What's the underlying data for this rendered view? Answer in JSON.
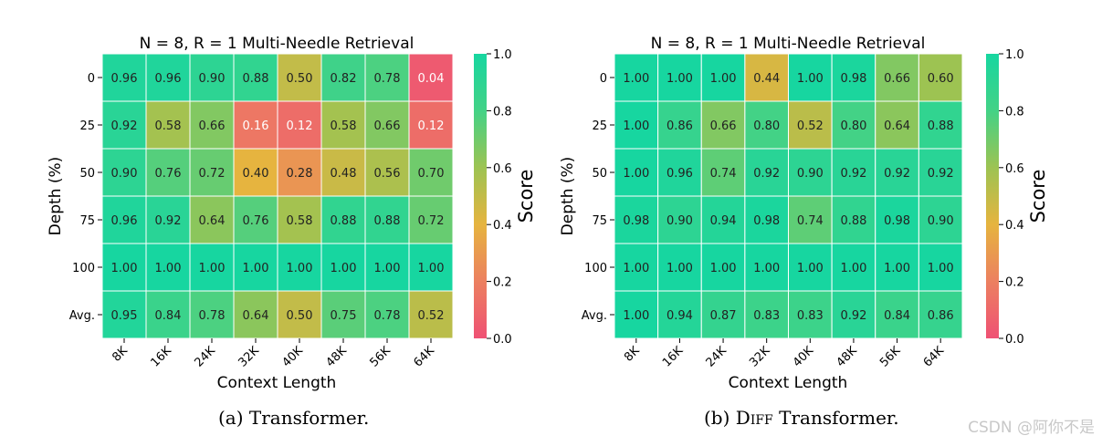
{
  "colormap": [
    "#ef5174",
    "#ec8060",
    "#e6b43f",
    "#9dc352",
    "#43d286",
    "#17d6a0"
  ],
  "chart_data": [
    {
      "type": "heatmap",
      "title_prefix": "N = 8, R = 1",
      "title_suffix": "Multi-Needle Retrieval",
      "xlabel": "Context Length",
      "ylabel": "Depth (%)",
      "colorbar_label": "Score",
      "colorbar_range": [
        0.0,
        1.0
      ],
      "colorbar_ticks": [
        "0.0",
        "0.2",
        "0.4",
        "0.6",
        "0.8",
        "1.0"
      ],
      "x": [
        "8K",
        "16K",
        "24K",
        "32K",
        "40K",
        "48K",
        "56K",
        "64K"
      ],
      "y": [
        "0",
        "25",
        "50",
        "75",
        "100",
        "Avg."
      ],
      "values": [
        [
          0.96,
          0.96,
          0.9,
          0.88,
          0.5,
          0.82,
          0.78,
          0.04
        ],
        [
          0.92,
          0.58,
          0.66,
          0.16,
          0.12,
          0.58,
          0.66,
          0.12
        ],
        [
          0.9,
          0.76,
          0.72,
          0.4,
          0.28,
          0.48,
          0.56,
          0.7
        ],
        [
          0.96,
          0.92,
          0.64,
          0.76,
          0.58,
          0.88,
          0.88,
          0.72
        ],
        [
          1.0,
          1.0,
          1.0,
          1.0,
          1.0,
          1.0,
          1.0,
          1.0
        ],
        [
          0.95,
          0.84,
          0.78,
          0.64,
          0.5,
          0.75,
          0.78,
          0.52
        ]
      ]
    },
    {
      "type": "heatmap",
      "title_prefix": "N = 8, R = 1",
      "title_suffix": "Multi-Needle Retrieval",
      "xlabel": "Context Length",
      "ylabel": "Depth (%)",
      "colorbar_label": "Score",
      "colorbar_range": [
        0.0,
        1.0
      ],
      "colorbar_ticks": [
        "0.0",
        "0.2",
        "0.4",
        "0.6",
        "0.8",
        "1.0"
      ],
      "x": [
        "8K",
        "16K",
        "24K",
        "32K",
        "40K",
        "48K",
        "56K",
        "64K"
      ],
      "y": [
        "0",
        "25",
        "50",
        "75",
        "100",
        "Avg."
      ],
      "values": [
        [
          1.0,
          1.0,
          1.0,
          0.44,
          1.0,
          0.98,
          0.66,
          0.6
        ],
        [
          1.0,
          0.86,
          0.66,
          0.8,
          0.52,
          0.8,
          0.64,
          0.88
        ],
        [
          1.0,
          0.96,
          0.74,
          0.92,
          0.9,
          0.92,
          0.92,
          0.92
        ],
        [
          0.98,
          0.9,
          0.94,
          0.98,
          0.74,
          0.88,
          0.98,
          0.9
        ],
        [
          1.0,
          1.0,
          1.0,
          1.0,
          1.0,
          1.0,
          1.0,
          1.0
        ],
        [
          1.0,
          0.94,
          0.87,
          0.83,
          0.83,
          0.92,
          0.84,
          0.86
        ]
      ]
    }
  ],
  "captions": {
    "a_prefix": "(a) Transformer.",
    "b_prefix": "(b)",
    "b_smallcaps": "Diff",
    "b_suffix": "Transformer."
  },
  "watermark": "CSDN @阿你不是"
}
